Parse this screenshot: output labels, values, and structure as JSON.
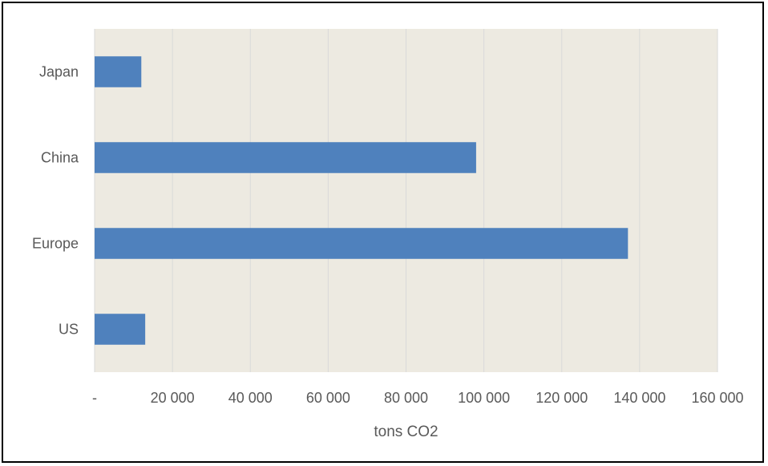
{
  "chart_data": {
    "type": "bar",
    "orientation": "horizontal",
    "categories": [
      "Japan",
      "China",
      "Europe",
      "US"
    ],
    "values": [
      12000,
      98000,
      137000,
      13000
    ],
    "xlabel": "tons CO2",
    "ylabel": "",
    "xlim": [
      0,
      160000
    ],
    "x_ticks": [
      "-",
      "20 000",
      "40 000",
      "60 000",
      "80 000",
      "100 000",
      "120 000",
      "140 000",
      "160 000"
    ],
    "grid": "vertical",
    "legend": "none",
    "colors": {
      "bar": "#4f81bd",
      "plot_background": "#edeae1",
      "gridline": "#d9d9d9",
      "text": "#595959"
    }
  }
}
